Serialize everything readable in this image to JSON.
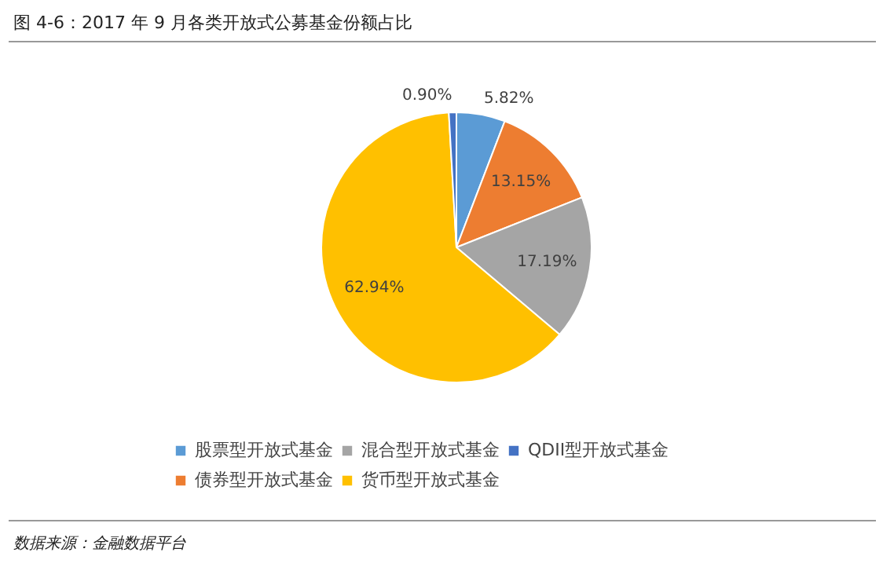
{
  "chart_data": {
    "type": "pie",
    "title": "图 4-6：2017 年 9 月各类开放式公募基金份额占比",
    "categories": [
      "股票型开放式基金",
      "债券型开放式基金",
      "混合型开放式基金",
      "货币型开放式基金",
      "QDII型开放式基金"
    ],
    "values": [
      5.82,
      13.15,
      17.19,
      62.94,
      0.9
    ],
    "colors": [
      "#5b9bd5",
      "#ed7d31",
      "#a5a5a5",
      "#ffc000",
      "#4472c4"
    ],
    "value_labels": [
      "5.82%",
      "13.15%",
      "17.19%",
      "62.94%",
      "0.90%"
    ],
    "legend": "bottom",
    "annotations": [
      "数据来源：金融数据平台"
    ]
  }
}
